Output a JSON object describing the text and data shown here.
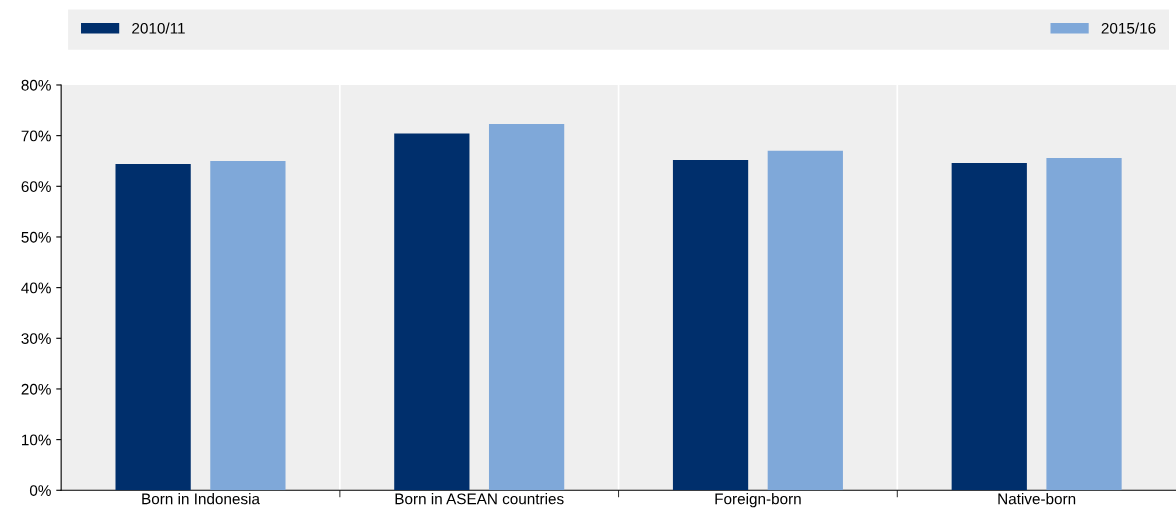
{
  "chart_data": {
    "type": "bar",
    "categories": [
      "Born in Indonesia",
      "Born in ASEAN countries",
      "Foreign-born",
      "Native-born"
    ],
    "series": [
      {
        "name": "2010/11",
        "color": "#002f6c",
        "values": [
          64.4,
          70.4,
          65.2,
          64.6
        ]
      },
      {
        "name": "2015/16",
        "color": "#7fa8d9",
        "values": [
          65.0,
          72.3,
          67.0,
          65.6
        ]
      }
    ],
    "ylim": [
      0,
      80
    ],
    "yticks": [
      {
        "value": 0,
        "label": "0%"
      },
      {
        "value": 10,
        "label": "10%"
      },
      {
        "value": 20,
        "label": "20%"
      },
      {
        "value": 30,
        "label": "30%"
      },
      {
        "value": 40,
        "label": "40%"
      },
      {
        "value": 50,
        "label": "50%"
      },
      {
        "value": 60,
        "label": "60%"
      },
      {
        "value": 70,
        "label": "70%"
      },
      {
        "value": 80,
        "label": "80%"
      }
    ],
    "grid": "x",
    "legend": "top"
  }
}
